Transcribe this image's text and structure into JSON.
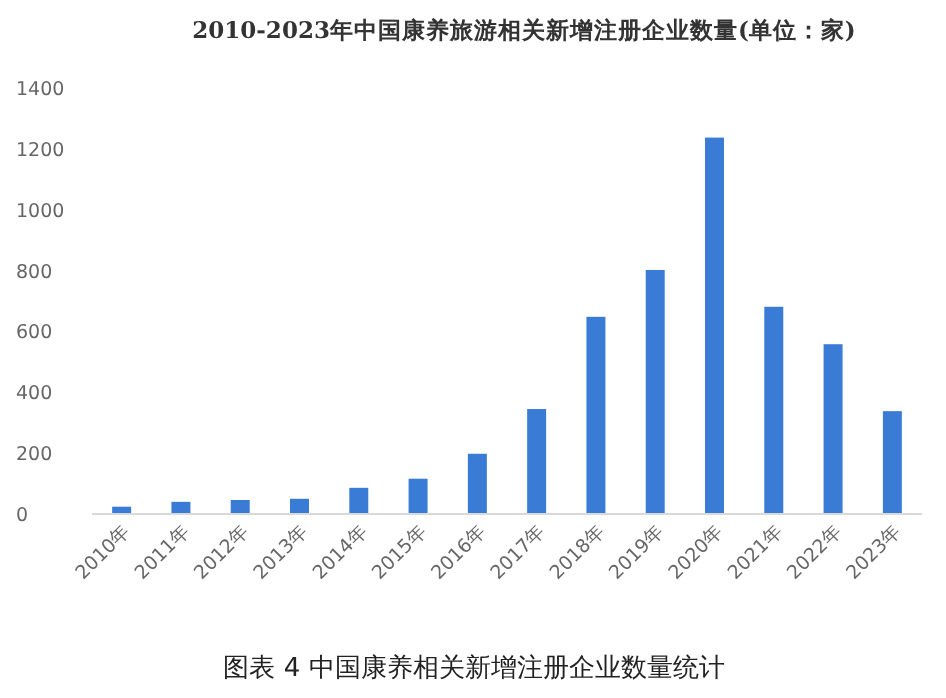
{
  "chart_data": {
    "type": "bar",
    "title": "2010-2023年中国康养旅游相关新增注册企业数量(单位：家)",
    "categories": [
      "2010年",
      "2011年",
      "2012年",
      "2013年",
      "2014年",
      "2015年",
      "2016年",
      "2017年",
      "2018年",
      "2019年",
      "2020年",
      "2021年",
      "2022年",
      "2023年"
    ],
    "values": [
      24,
      40,
      46,
      50,
      86,
      116,
      198,
      345,
      648,
      802,
      1237,
      681,
      558,
      338
    ],
    "color": "#3a7bd5",
    "ylim": [
      0,
      1400
    ],
    "yticks": [
      0,
      200,
      400,
      600,
      800,
      1000,
      1200,
      1400
    ],
    "annotations": [
      "图表 4   中国康养相关新增注册企业数量统计"
    ]
  }
}
